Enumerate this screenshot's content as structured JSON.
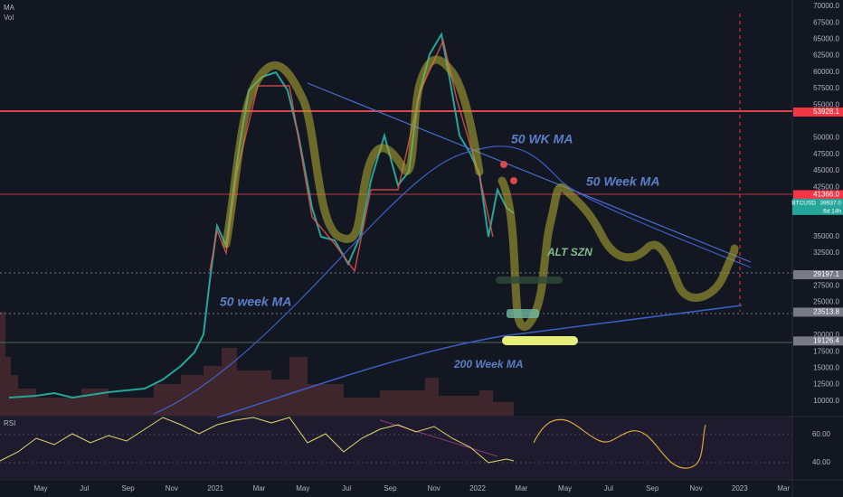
{
  "indicators": [
    "MA",
    "Vol"
  ],
  "price_axis": [
    "70000.0",
    "67500.0",
    "65000.0",
    "62500.0",
    "60000.0",
    "57500.0",
    "55000.0",
    "50000.0",
    "47500.0",
    "45000.0",
    "42500.0",
    "35000.0",
    "32500.0",
    "27500.0",
    "25000.0",
    "20000.0",
    "17500.0",
    "15000.0",
    "12500.0",
    "10000.0"
  ],
  "price_tags": [
    {
      "label": "53928.1",
      "color": "#f23645"
    },
    {
      "label": "41366.0",
      "color": "#f23645"
    },
    {
      "label": "29197.1",
      "color": "#787b86"
    },
    {
      "label": "23513.8",
      "color": "#787b86"
    },
    {
      "label": "19126.4",
      "color": "#787b86"
    }
  ],
  "current_tag": {
    "symbol": "BTCUSD",
    "price": "39937.0",
    "countdown": "6d 14h"
  },
  "annotations": [
    {
      "text": "50 WK MA",
      "color": "#5b7fc7"
    },
    {
      "text": "50 Week MA",
      "color": "#5b7fc7"
    },
    {
      "text": "ALT SZN",
      "color": "#7fbf8f"
    },
    {
      "text": "50 week MA",
      "color": "#5b7fc7"
    },
    {
      "text": "200 Week MA",
      "color": "#5b7fc7"
    }
  ],
  "rsi": {
    "label": "RSI",
    "ticks": [
      "60.00",
      "40.00"
    ]
  },
  "time_axis": [
    "May",
    "Jul",
    "Sep",
    "Nov",
    "2021",
    "Mar",
    "May",
    "Jul",
    "Sep",
    "Nov",
    "2022",
    "Mar",
    "May",
    "Jul",
    "Sep",
    "Nov",
    "2023",
    "Mar"
  ]
}
